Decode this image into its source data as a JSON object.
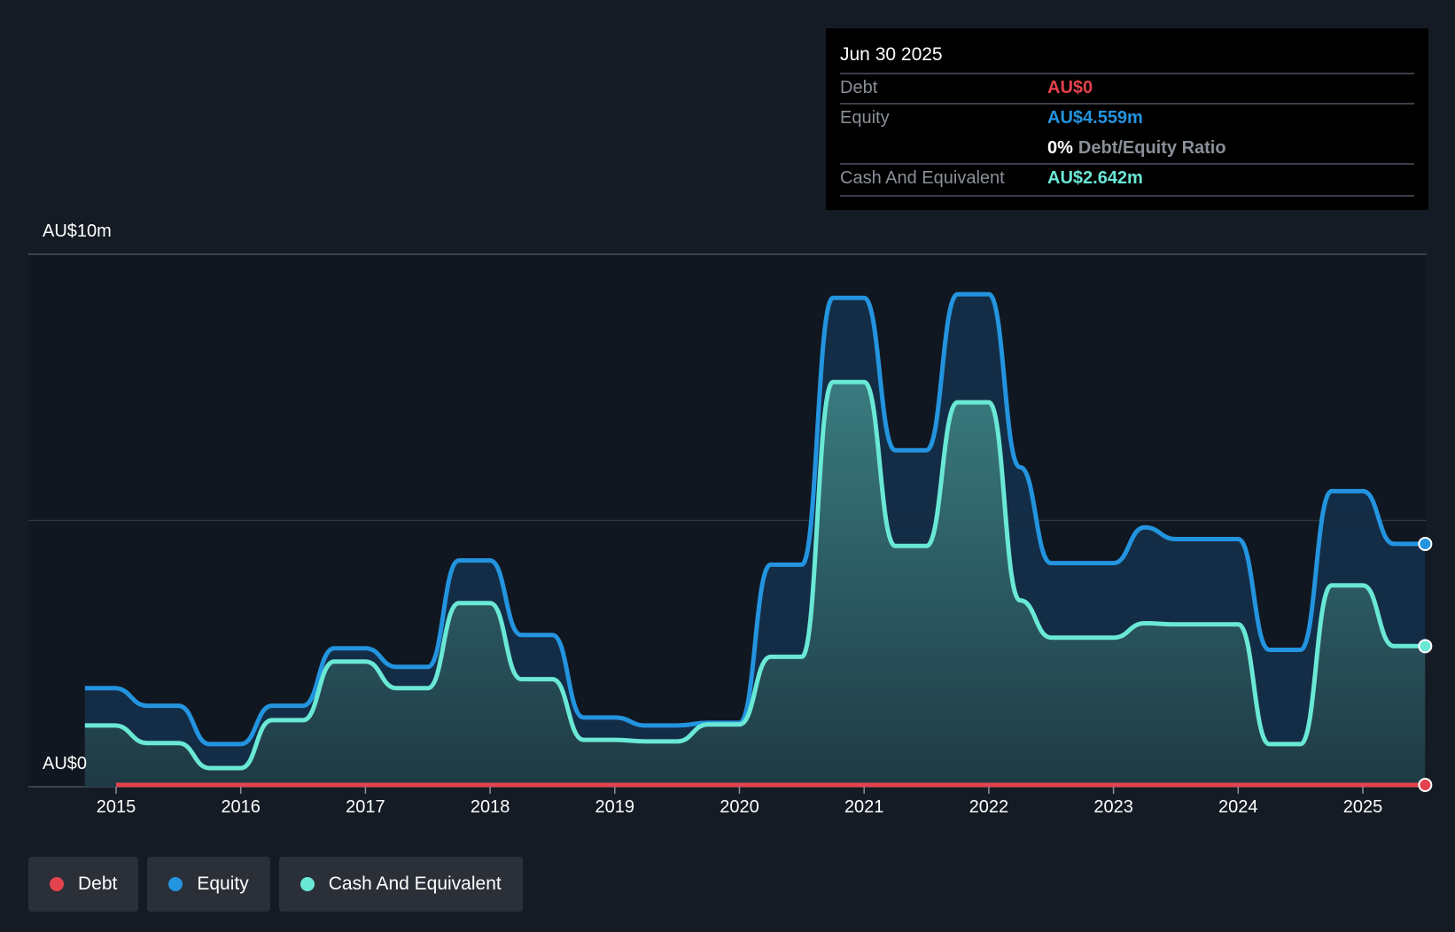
{
  "tooltip": {
    "date": "Jun 30 2025",
    "debt_label": "Debt",
    "debt_value": "AU$0",
    "equity_label": "Equity",
    "equity_value": "AU$4.559m",
    "ratio_pct": "0%",
    "ratio_label": "Debt/Equity Ratio",
    "cash_label": "Cash And Equivalent",
    "cash_value": "AU$2.642m"
  },
  "legend": {
    "debt": "Debt",
    "equity": "Equity",
    "cash": "Cash And Equivalent"
  },
  "colors": {
    "background": "#151b24",
    "plot_background": "#111720",
    "debt": "#e4424d",
    "equity": "#2394df",
    "cash": "#6ae8d6",
    "grid": "#3a4049"
  },
  "chart_data": {
    "type": "area",
    "title": "",
    "xlabel": "",
    "ylabel": "",
    "y_tick_labels": [
      "AU$0",
      "AU$10m"
    ],
    "ylim": [
      0,
      10
    ],
    "y_unit": "AU$m",
    "grid": true,
    "legend_position": "bottom-left",
    "x_ticks": [
      "2015",
      "2016",
      "2017",
      "2018",
      "2019",
      "2020",
      "2021",
      "2022",
      "2023",
      "2024",
      "2025"
    ],
    "xlim": [
      2014.75,
      2025.5
    ],
    "series": [
      {
        "name": "Equity",
        "x": [
          2014.75,
          2014.99,
          2015.25,
          2015.5,
          2015.75,
          2016.0,
          2016.25,
          2016.5,
          2016.75,
          2017.0,
          2017.25,
          2017.5,
          2017.75,
          2018.0,
          2018.25,
          2018.5,
          2018.75,
          2019.0,
          2019.25,
          2019.5,
          2019.75,
          2020.0,
          2020.25,
          2020.5,
          2020.75,
          2021.0,
          2021.25,
          2021.5,
          2021.75,
          2022.0,
          2022.25,
          2022.5,
          2022.75,
          2023.0,
          2023.25,
          2023.5,
          2023.75,
          2024.0,
          2024.25,
          2024.5,
          2024.75,
          2025.0,
          2025.25,
          2025.5
        ],
        "values": [
          1.85,
          1.85,
          1.52,
          1.52,
          0.8,
          0.8,
          1.52,
          1.52,
          2.6,
          2.6,
          2.25,
          2.25,
          4.25,
          4.25,
          2.85,
          2.85,
          1.3,
          1.3,
          1.15,
          1.15,
          1.2,
          1.2,
          4.17,
          4.17,
          9.18,
          9.18,
          6.32,
          6.32,
          9.25,
          9.25,
          6.0,
          4.2,
          4.2,
          4.2,
          4.87,
          4.65,
          4.65,
          4.65,
          2.57,
          2.57,
          5.55,
          5.55,
          4.56,
          4.56
        ]
      },
      {
        "name": "Cash And Equivalent",
        "x": [
          2014.75,
          2014.99,
          2015.25,
          2015.5,
          2015.75,
          2016.0,
          2016.25,
          2016.5,
          2016.75,
          2017.0,
          2017.25,
          2017.5,
          2017.75,
          2018.0,
          2018.25,
          2018.5,
          2018.75,
          2019.0,
          2019.25,
          2019.5,
          2019.75,
          2020.0,
          2020.25,
          2020.5,
          2020.75,
          2021.0,
          2021.25,
          2021.5,
          2021.75,
          2022.0,
          2022.25,
          2022.5,
          2022.75,
          2023.0,
          2023.25,
          2023.5,
          2023.75,
          2024.0,
          2024.25,
          2024.5,
          2024.75,
          2025.0,
          2025.25,
          2025.5
        ],
        "values": [
          1.15,
          1.15,
          0.82,
          0.82,
          0.35,
          0.35,
          1.25,
          1.25,
          2.35,
          2.35,
          1.85,
          1.85,
          3.45,
          3.45,
          2.02,
          2.02,
          0.88,
          0.88,
          0.85,
          0.85,
          1.17,
          1.17,
          2.44,
          2.44,
          7.6,
          7.6,
          4.52,
          4.52,
          7.22,
          7.22,
          3.5,
          2.8,
          2.8,
          2.8,
          3.07,
          3.05,
          3.05,
          3.05,
          0.8,
          0.8,
          3.78,
          3.78,
          2.64,
          2.64
        ]
      },
      {
        "name": "Debt",
        "x": [
          2015.0,
          2025.5
        ],
        "values": [
          0,
          0
        ]
      }
    ]
  }
}
